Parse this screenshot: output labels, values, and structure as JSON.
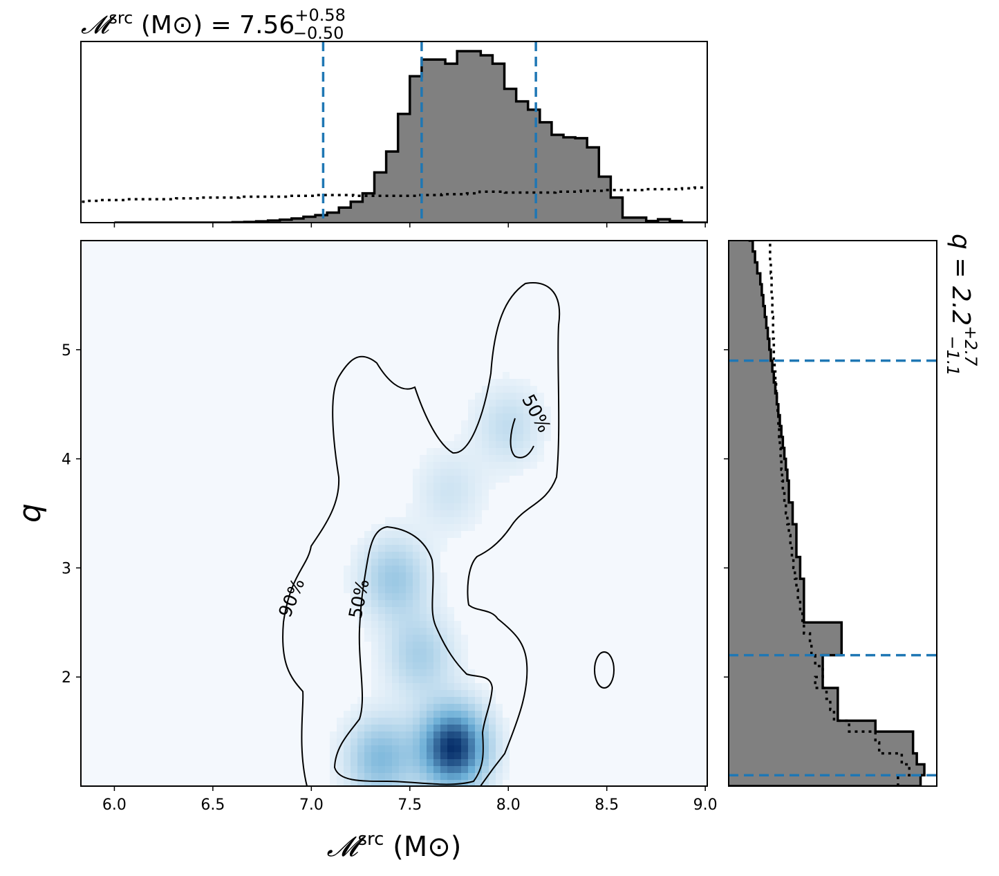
{
  "chart_data": [
    {
      "type": "heatmap",
      "panel": "joint",
      "xlabel": "𝓜src (M⊙)",
      "ylabel": "q",
      "xlim": [
        5.83,
        9.01
      ],
      "ylim": [
        1.0,
        6.0
      ],
      "x_ticks": [
        "6.0",
        "6.5",
        "7.0",
        "7.5",
        "8.0",
        "8.5",
        "9.0"
      ],
      "y_ticks": [
        "2",
        "3",
        "4",
        "5"
      ],
      "colormap": "Blues",
      "density_peaks": [
        {
          "x": 7.72,
          "y": 1.35,
          "strength": 1.0
        },
        {
          "x": 7.35,
          "y": 1.25,
          "strength": 0.45
        },
        {
          "x": 7.42,
          "y": 2.9,
          "strength": 0.35
        },
        {
          "x": 7.55,
          "y": 2.2,
          "strength": 0.3
        },
        {
          "x": 8.0,
          "y": 4.3,
          "strength": 0.2
        },
        {
          "x": 7.7,
          "y": 3.7,
          "strength": 0.15
        }
      ],
      "contours": [
        {
          "label": "90%",
          "label_position": [
            6.92,
            2.7
          ]
        },
        {
          "label": "50%",
          "label_position": [
            7.25,
            2.75
          ]
        },
        {
          "label": "50%",
          "label_position": [
            8.13,
            4.4
          ]
        }
      ]
    },
    {
      "type": "bar",
      "panel": "top-marginal",
      "title": "𝓜src (M⊙) = 7.56 +0.58 −0.50",
      "title_parts": {
        "prefix": "𝓜",
        "sup": "src",
        "unit": " (M⊙) = 7.56",
        "upper": "+0.58",
        "lower": "−0.50"
      },
      "x_range": [
        5.83,
        9.01
      ],
      "bin_edges_start": 6.0,
      "bin_width": 0.06,
      "posterior_counts": [
        0,
        0,
        0,
        0,
        0,
        0,
        0,
        0,
        0,
        0,
        0.5,
        0.8,
        1.5,
        2.5,
        3.5,
        5,
        7,
        9,
        12,
        18,
        25,
        35,
        60,
        85,
        130,
        175,
        195,
        195,
        190,
        205,
        205,
        200,
        190,
        160,
        145,
        135,
        120,
        105,
        102,
        101,
        90,
        55,
        30,
        6,
        6,
        2,
        4,
        2,
        0,
        0,
        0,
        0,
        0
      ],
      "prior_counts": [
        25,
        26,
        27,
        27,
        28,
        28,
        28,
        28,
        29,
        29,
        30,
        30,
        30,
        31,
        31,
        31,
        31,
        32,
        32,
        33,
        33,
        33,
        32,
        32,
        32,
        32,
        32,
        33,
        33,
        34,
        34,
        35,
        37,
        37,
        36,
        36,
        36,
        36,
        37,
        37,
        38,
        38,
        39,
        39,
        39,
        40,
        40,
        40,
        41,
        42,
        42,
        43,
        44
      ],
      "dashed_lines": [
        7.06,
        7.56,
        8.14
      ],
      "line_color": "#1f77b4"
    },
    {
      "type": "bar",
      "panel": "right-marginal",
      "title": "q = 2.2 +2.7 −1.1",
      "title_parts": {
        "prefix": "q = 2.2",
        "upper": "+2.7",
        "lower": "−1.1"
      },
      "y_range": [
        1.0,
        6.0
      ],
      "bin_edges_start": 1.0,
      "bin_width": 0.1,
      "posterior_counts": [
        255,
        260,
        250,
        245,
        245,
        195,
        145,
        145,
        145,
        125,
        125,
        125,
        150,
        150,
        150,
        100,
        100,
        100,
        100,
        95,
        95,
        90,
        90,
        90,
        85,
        85,
        80,
        80,
        78,
        76,
        74,
        72,
        70,
        68,
        66,
        64,
        62,
        60,
        58,
        56,
        54,
        52,
        50,
        48,
        46,
        44,
        42,
        38,
        35,
        32,
        28
      ],
      "prior_counts": [
        225,
        240,
        230,
        200,
        195,
        160,
        140,
        135,
        130,
        115,
        125,
        115,
        110,
        108,
        100,
        98,
        95,
        92,
        90,
        88,
        86,
        84,
        82,
        80,
        78,
        76,
        74,
        72,
        71,
        70,
        69,
        68,
        67,
        66,
        65,
        64,
        63,
        62,
        61,
        60,
        60,
        59,
        59,
        58,
        58,
        57,
        57,
        56,
        55,
        55,
        54
      ],
      "dashed_lines": [
        1.1,
        2.2,
        4.9
      ],
      "line_color": "#1f77b4"
    }
  ]
}
